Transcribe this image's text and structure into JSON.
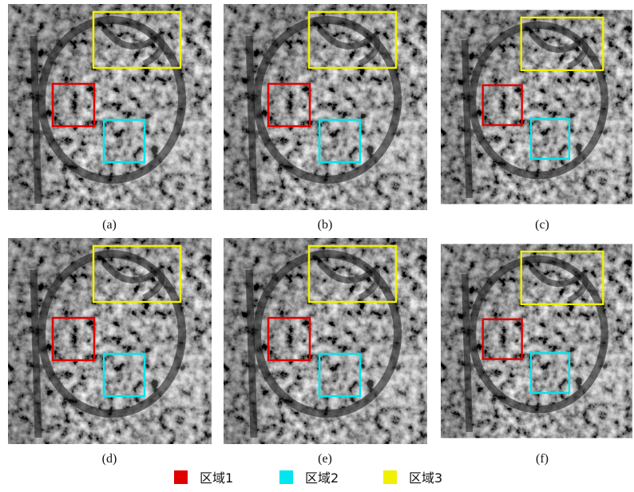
{
  "panels": [
    {
      "label": "(a)"
    },
    {
      "label": "(b)"
    },
    {
      "label": "(c)"
    },
    {
      "label": "(d)"
    },
    {
      "label": "(e)"
    },
    {
      "label": "(f)"
    }
  ],
  "legend": [
    {
      "label": "区域1"
    },
    {
      "label": "区域2"
    },
    {
      "label": "区域3"
    }
  ]
}
